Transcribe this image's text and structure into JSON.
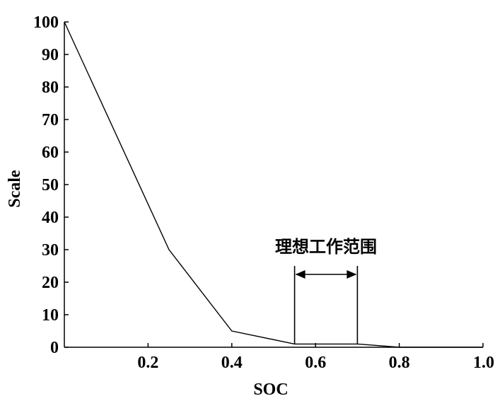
{
  "chart_data": {
    "type": "line",
    "title": "",
    "xlabel": "SOC",
    "ylabel": "Scale",
    "xlim": [
      0,
      1.0
    ],
    "ylim": [
      0,
      100
    ],
    "x_ticks": [
      0.2,
      0.4,
      0.6,
      0.8,
      1.0
    ],
    "x_tick_labels": [
      "0.2",
      "0.4",
      "0.6",
      "0.8",
      "1.0"
    ],
    "y_ticks": [
      0,
      10,
      20,
      30,
      40,
      50,
      60,
      70,
      80,
      90,
      100
    ],
    "y_tick_labels": [
      "0",
      "10",
      "20",
      "30",
      "40",
      "50",
      "60",
      "70",
      "80",
      "90",
      "100"
    ],
    "grid": false,
    "series": [
      {
        "x": [
          0,
          0.25,
          0.4,
          0.55,
          0.7,
          0.8,
          1.0
        ],
        "y": [
          100,
          30,
          5,
          1,
          1,
          0,
          0
        ]
      }
    ],
    "annotations": [
      {
        "text": "理想工作范围",
        "x_start": 0.55,
        "x_end": 0.7
      }
    ],
    "color": "#000000"
  }
}
